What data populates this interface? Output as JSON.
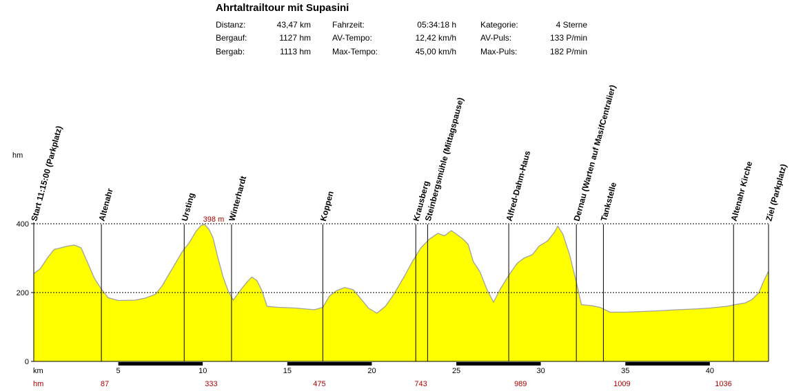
{
  "title": "Ahrtaltrailtour mit Supasini",
  "stats": [
    {
      "label": "Distanz:",
      "value": "43,47 km"
    },
    {
      "label": "Bergauf:",
      "value": "1127 hm"
    },
    {
      "label": "Bergab:",
      "value": "1113 hm"
    },
    {
      "label": "Fahrzeit:",
      "value": "05:34:18 h"
    },
    {
      "label": "AV-Tempo:",
      "value": "12,42 km/h"
    },
    {
      "label": "Max-Tempo:",
      "value": "45,00 km/h"
    },
    {
      "label": "Kategorie:",
      "value": "4 Sterne"
    },
    {
      "label": "AV-Puls:",
      "value": "133 P/min"
    },
    {
      "label": "Max-Puls:",
      "value": "182 P/min"
    }
  ],
  "chart_data": {
    "type": "area",
    "ylabel": "hm",
    "xlabel": "km",
    "ylim": [
      0,
      400
    ],
    "xlim": [
      0,
      43.47
    ],
    "yticks": [
      0,
      200,
      400
    ],
    "xticks": [
      5,
      10,
      15,
      20,
      25,
      30,
      35,
      40
    ],
    "fill_color": "#ffff00",
    "line_color": "#a0a0a0",
    "max_label": "398 m",
    "profile": [
      {
        "km": 0.0,
        "hm": 255
      },
      {
        "km": 0.4,
        "hm": 270
      },
      {
        "km": 0.8,
        "hm": 300
      },
      {
        "km": 1.2,
        "hm": 325
      },
      {
        "km": 1.6,
        "hm": 330
      },
      {
        "km": 2.0,
        "hm": 335
      },
      {
        "km": 2.4,
        "hm": 338
      },
      {
        "km": 2.8,
        "hm": 330
      },
      {
        "km": 3.2,
        "hm": 285
      },
      {
        "km": 3.6,
        "hm": 240
      },
      {
        "km": 4.0,
        "hm": 210
      },
      {
        "km": 4.4,
        "hm": 185
      },
      {
        "km": 5.0,
        "hm": 177
      },
      {
        "km": 6.0,
        "hm": 178
      },
      {
        "km": 6.6,
        "hm": 184
      },
      {
        "km": 7.2,
        "hm": 195
      },
      {
        "km": 7.6,
        "hm": 220
      },
      {
        "km": 8.2,
        "hm": 270
      },
      {
        "km": 8.8,
        "hm": 320
      },
      {
        "km": 9.2,
        "hm": 345
      },
      {
        "km": 9.6,
        "hm": 378
      },
      {
        "km": 9.9,
        "hm": 395
      },
      {
        "km": 10.1,
        "hm": 398
      },
      {
        "km": 10.35,
        "hm": 385
      },
      {
        "km": 10.6,
        "hm": 360
      },
      {
        "km": 10.9,
        "hm": 300
      },
      {
        "km": 11.2,
        "hm": 245
      },
      {
        "km": 11.5,
        "hm": 205
      },
      {
        "km": 11.8,
        "hm": 178
      },
      {
        "km": 12.2,
        "hm": 205
      },
      {
        "km": 12.6,
        "hm": 230
      },
      {
        "km": 12.9,
        "hm": 245
      },
      {
        "km": 13.2,
        "hm": 235
      },
      {
        "km": 13.5,
        "hm": 205
      },
      {
        "km": 13.8,
        "hm": 160
      },
      {
        "km": 14.5,
        "hm": 157
      },
      {
        "km": 15.5,
        "hm": 155
      },
      {
        "km": 16.6,
        "hm": 150
      },
      {
        "km": 17.1,
        "hm": 157
      },
      {
        "km": 17.5,
        "hm": 190
      },
      {
        "km": 17.9,
        "hm": 205
      },
      {
        "km": 18.4,
        "hm": 215
      },
      {
        "km": 18.9,
        "hm": 208
      },
      {
        "km": 19.3,
        "hm": 185
      },
      {
        "km": 19.8,
        "hm": 155
      },
      {
        "km": 20.3,
        "hm": 140
      },
      {
        "km": 20.8,
        "hm": 160
      },
      {
        "km": 21.3,
        "hm": 195
      },
      {
        "km": 21.9,
        "hm": 245
      },
      {
        "km": 22.4,
        "hm": 290
      },
      {
        "km": 22.9,
        "hm": 330
      },
      {
        "km": 23.4,
        "hm": 355
      },
      {
        "km": 23.9,
        "hm": 372
      },
      {
        "km": 24.3,
        "hm": 365
      },
      {
        "km": 24.7,
        "hm": 380
      },
      {
        "km": 25.0,
        "hm": 370
      },
      {
        "km": 25.4,
        "hm": 355
      },
      {
        "km": 25.7,
        "hm": 340
      },
      {
        "km": 26.0,
        "hm": 290
      },
      {
        "km": 26.4,
        "hm": 260
      },
      {
        "km": 26.8,
        "hm": 210
      },
      {
        "km": 27.2,
        "hm": 172
      },
      {
        "km": 27.6,
        "hm": 210
      },
      {
        "km": 28.1,
        "hm": 250
      },
      {
        "km": 28.6,
        "hm": 285
      },
      {
        "km": 29.0,
        "hm": 300
      },
      {
        "km": 29.5,
        "hm": 310
      },
      {
        "km": 29.9,
        "hm": 335
      },
      {
        "km": 30.4,
        "hm": 350
      },
      {
        "km": 30.8,
        "hm": 375
      },
      {
        "km": 31.0,
        "hm": 393
      },
      {
        "km": 31.3,
        "hm": 370
      },
      {
        "km": 31.7,
        "hm": 310
      },
      {
        "km": 32.1,
        "hm": 230
      },
      {
        "km": 32.4,
        "hm": 165
      },
      {
        "km": 33.0,
        "hm": 162
      },
      {
        "km": 33.5,
        "hm": 157
      },
      {
        "km": 34.1,
        "hm": 143
      },
      {
        "km": 35.0,
        "hm": 143
      },
      {
        "km": 36.0,
        "hm": 145
      },
      {
        "km": 37.0,
        "hm": 147
      },
      {
        "km": 38.0,
        "hm": 150
      },
      {
        "km": 39.0,
        "hm": 152
      },
      {
        "km": 40.0,
        "hm": 155
      },
      {
        "km": 41.0,
        "hm": 160
      },
      {
        "km": 41.5,
        "hm": 165
      },
      {
        "km": 42.1,
        "hm": 170
      },
      {
        "km": 42.5,
        "hm": 180
      },
      {
        "km": 42.9,
        "hm": 200
      },
      {
        "km": 43.2,
        "hm": 235
      },
      {
        "km": 43.47,
        "hm": 262
      }
    ],
    "waypoints": [
      {
        "km": 0.0,
        "name": "Start 11:15:00 (Parkplatz)"
      },
      {
        "km": 4.0,
        "name": "Altenahr"
      },
      {
        "km": 8.9,
        "name": "Ursting"
      },
      {
        "km": 11.7,
        "name": "Winterhardt"
      },
      {
        "km": 17.1,
        "name": "Koppen"
      },
      {
        "km": 22.6,
        "name": "Krausberg"
      },
      {
        "km": 23.3,
        "name": "Steinbergsmühle (Mittagspause)"
      },
      {
        "km": 28.1,
        "name": "Alfred-Dahm-Haus"
      },
      {
        "km": 32.1,
        "name": "Dernau (Warten auf MasifCentralier)"
      },
      {
        "km": 33.7,
        "name": "Tankstelle"
      },
      {
        "km": 41.4,
        "name": "Altenahr Kirche"
      },
      {
        "km": 43.47,
        "name": "Ziel (Parkplatz)"
      }
    ],
    "cumulative_label": "hm",
    "cumulative_ascent": [
      {
        "km": 4.2,
        "value": "87"
      },
      {
        "km": 10.5,
        "value": "333"
      },
      {
        "km": 16.9,
        "value": "475"
      },
      {
        "km": 22.9,
        "value": "743"
      },
      {
        "km": 28.8,
        "value": "989"
      },
      {
        "km": 34.8,
        "value": "1009"
      },
      {
        "km": 40.8,
        "value": "1036"
      }
    ]
  }
}
